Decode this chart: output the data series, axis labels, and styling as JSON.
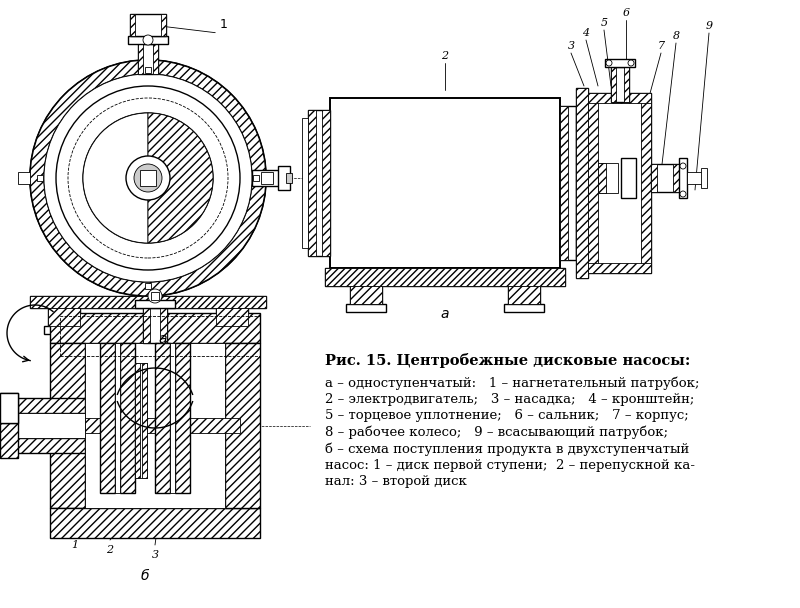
{
  "title": "Рис. 15. Центробежные дисковые насосы:",
  "caption_lines": [
    "а – одноступенчатый:   1 – нагнетательный патрубок;",
    "2 – электродвигатель;   3 – насадка;   4 – кронштейн;",
    "5 – торцевое уплотнение;   6 – сальник;   7 – корпус;",
    "8 – рабочее колесо;   9 – всасывающий патрубок;",
    "б – схема поступления продукта в двухступенчатый",
    "насос: 1 – диск первой ступени;  2 – перепускной ка-",
    "нал: 3 – второй диск"
  ],
  "bg_color": "#ffffff",
  "text_color": "#000000",
  "title_fontsize": 10.5,
  "caption_fontsize": 9.5,
  "fig_width": 8.0,
  "fig_height": 6.08,
  "dpi": 100
}
